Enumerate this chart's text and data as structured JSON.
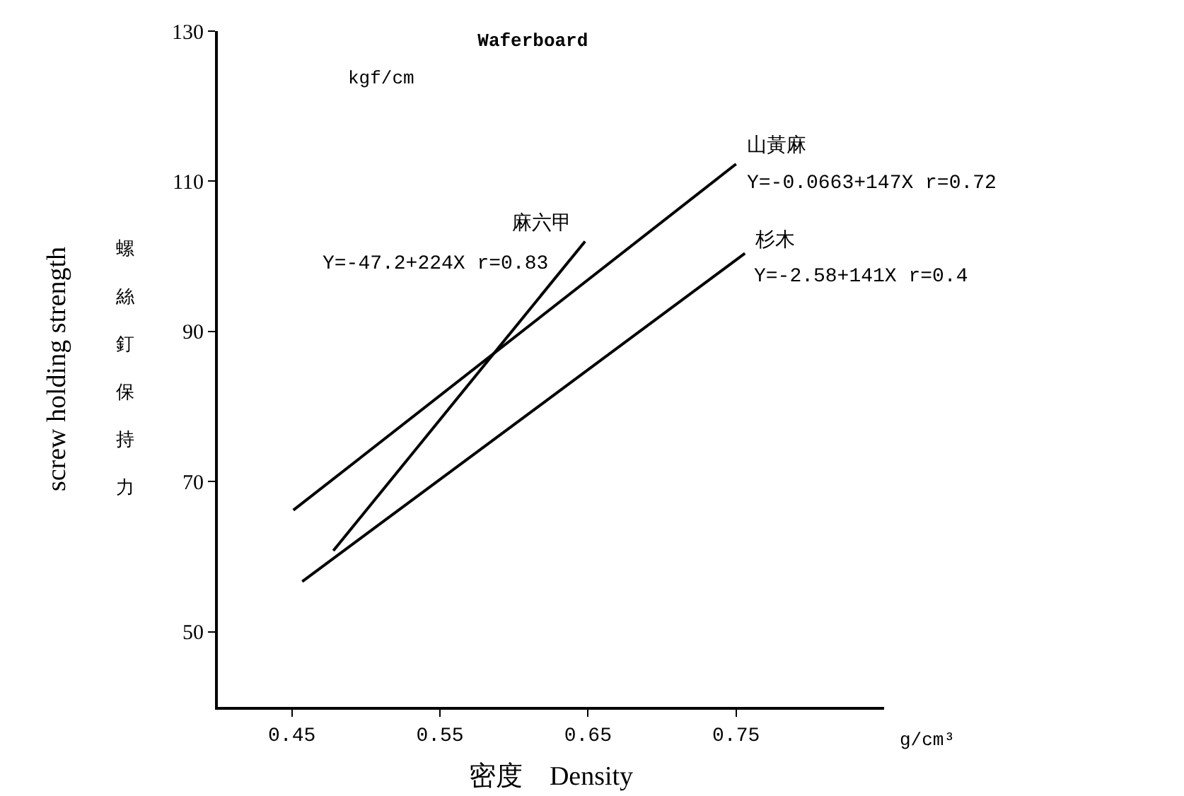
{
  "chart_data": {
    "type": "line",
    "title": "Waferboard",
    "xlabel": "密度　Density",
    "ylabel": "screw holding strength",
    "series": [
      {
        "name": "山黃麻",
        "color": "#000000",
        "x": [
          0.451,
          0.75
        ],
        "values": [
          66.2,
          112.3
        ]
      },
      {
        "name": "杉木",
        "color": "#000000",
        "x": [
          0.457,
          0.756
        ],
        "values": [
          56.7,
          100.4
        ]
      },
      {
        "name": "麻六甲",
        "color": "#000000",
        "x": [
          0.478,
          0.648
        ],
        "values": [
          60.8,
          102
        ]
      }
    ],
    "annotations": [
      "Y=-0.0663+147X r=0.72",
      "Y=-2.58+141X r=0.4",
      "Y=-47.2+224X r=0.83",
      "kgf/cm",
      "g/cm³",
      "螺絲釘保持力"
    ],
    "xlim": [
      0.4,
      0.85
    ],
    "ylim": [
      40,
      130
    ],
    "xticks": [
      0.45,
      0.55,
      0.65,
      0.75
    ],
    "yticks": [
      50,
      70,
      90,
      110,
      130
    ],
    "grid": false,
    "legend": false,
    "marker": "none",
    "line_style": "solid"
  }
}
